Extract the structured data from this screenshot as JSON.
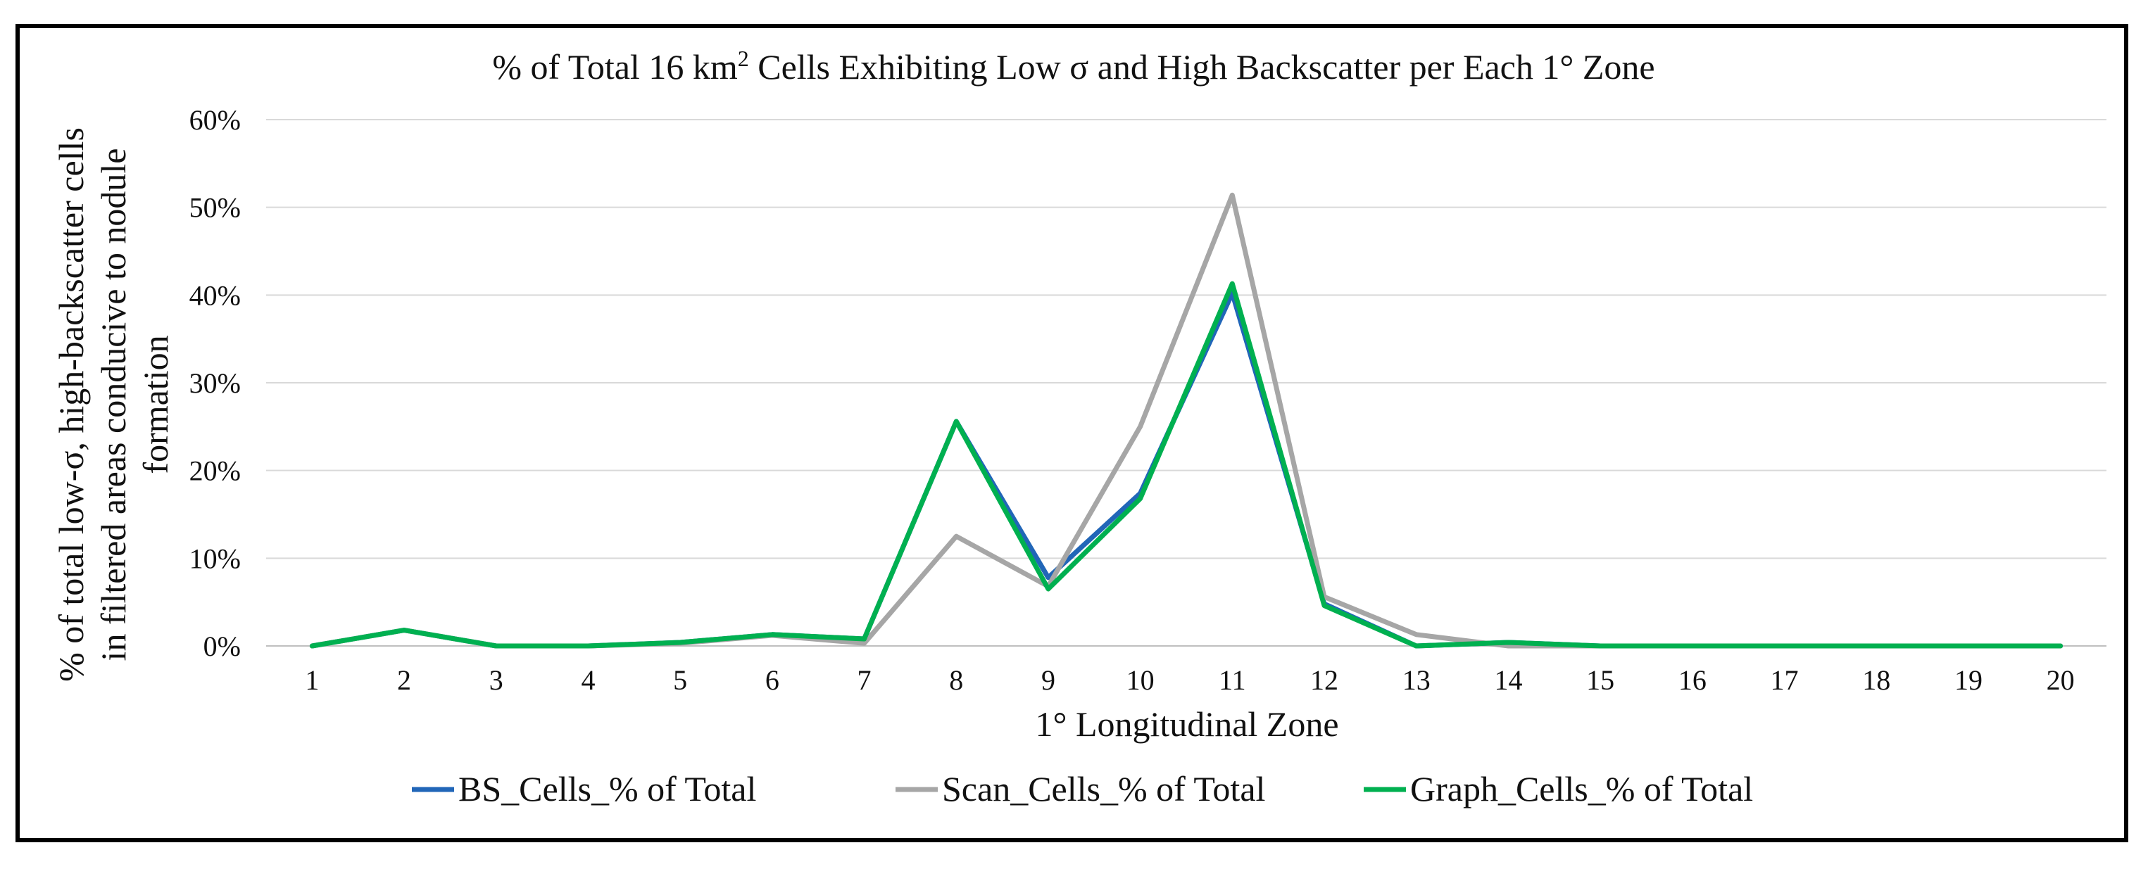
{
  "chart_data": {
    "type": "line",
    "title": "% of Total 16 km² Cells Exhibiting Low σ and High Backscatter per Each 1° Zone",
    "title_parts": {
      "before": "% of Total 16 km",
      "sup": "2",
      "after": " Cells Exhibiting Low σ and High Backscatter per Each 1° Zone"
    },
    "xlabel": "1° Longitudinal Zone",
    "ylabel_lines": [
      "% of total low-σ, high-backscatter cells",
      "in filtered areas conducive to nodule",
      "formation"
    ],
    "categories": [
      "1",
      "2",
      "3",
      "4",
      "5",
      "6",
      "7",
      "8",
      "9",
      "10",
      "11",
      "12",
      "13",
      "14",
      "15",
      "16",
      "17",
      "18",
      "19",
      "20"
    ],
    "ylim": [
      0,
      60
    ],
    "yticks": [
      0,
      10,
      20,
      30,
      40,
      50,
      60
    ],
    "ytick_labels": [
      "0%",
      "10%",
      "20%",
      "30%",
      "40%",
      "50%",
      "60%"
    ],
    "grid": true,
    "legend_position": "bottom",
    "series": [
      {
        "name": "BS_Cells_% of Total",
        "color": "#2166b8",
        "values": [
          0,
          1.8,
          0,
          0,
          0.4,
          1.3,
          0.8,
          25.6,
          7.8,
          17.4,
          40.2,
          4.8,
          0,
          0.4,
          0,
          0,
          0,
          0,
          0,
          0
        ]
      },
      {
        "name": "Scan_Cells_% of Total",
        "color": "#a6a6a6",
        "values": [
          0,
          1.8,
          0,
          0,
          0.3,
          1.2,
          0.3,
          12.5,
          6.8,
          25.0,
          51.4,
          5.6,
          1.3,
          0,
          0,
          0,
          0,
          0,
          0,
          0
        ]
      },
      {
        "name": "Graph_Cells_% of Total",
        "color": "#00b050",
        "values": [
          0,
          1.8,
          0,
          0,
          0.4,
          1.3,
          0.8,
          25.6,
          6.5,
          16.8,
          41.3,
          4.6,
          0,
          0.4,
          0,
          0,
          0,
          0,
          0,
          0
        ]
      }
    ]
  }
}
